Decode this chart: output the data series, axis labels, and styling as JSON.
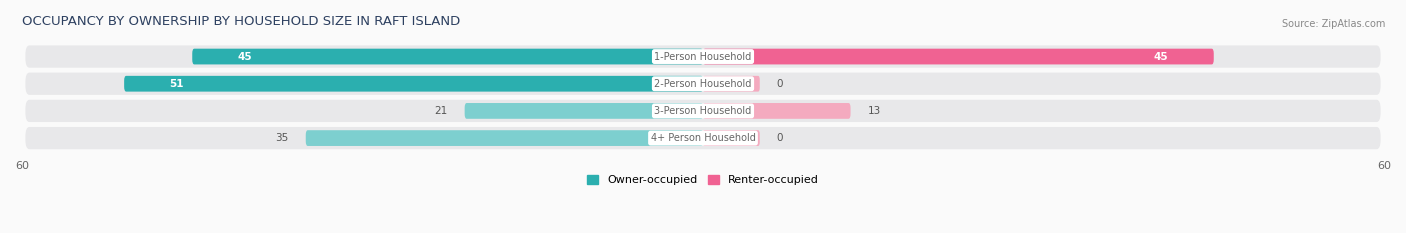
{
  "title": "OCCUPANCY BY OWNERSHIP BY HOUSEHOLD SIZE IN RAFT ISLAND",
  "source": "Source: ZipAtlas.com",
  "categories": [
    "1-Person Household",
    "2-Person Household",
    "3-Person Household",
    "4+ Person Household"
  ],
  "owner_values": [
    45,
    51,
    21,
    35
  ],
  "renter_values": [
    45,
    0,
    13,
    0
  ],
  "renter_stub_values": [
    0,
    5,
    0,
    5
  ],
  "x_max": 60,
  "owner_color_full": "#2BAFAF",
  "owner_color_partial": "#7DCFCF",
  "renter_color_full": "#F06292",
  "renter_color_partial": "#F4AABF",
  "row_bg_color": "#E8E8EA",
  "fig_bg_color": "#FAFAFA",
  "label_color_dark": "#555555",
  "label_color_white": "#FFFFFF",
  "cat_label_color": "#666666"
}
